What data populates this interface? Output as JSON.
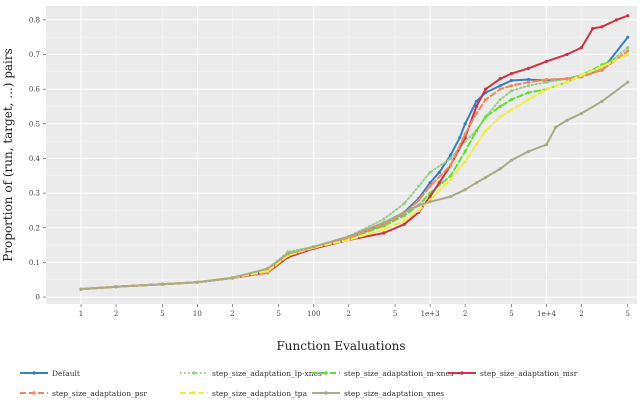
{
  "chart_data": {
    "type": "line",
    "title": "",
    "xlabel": "Function Evaluations",
    "ylabel": "Proportion of (run, target, ...) pairs",
    "x_scale": "log",
    "xlim": [
      0.5,
      60000
    ],
    "ylim": [
      -0.02,
      0.84
    ],
    "grid": true,
    "legend_position": "bottom",
    "x_ticks": [
      {
        "value": 1,
        "label": "1",
        "major": true
      },
      {
        "value": 2,
        "label": "2",
        "major": false
      },
      {
        "value": 5,
        "label": "5",
        "major": false
      },
      {
        "value": 10,
        "label": "10",
        "major": true
      },
      {
        "value": 20,
        "label": "2",
        "major": false
      },
      {
        "value": 50,
        "label": "5",
        "major": false
      },
      {
        "value": 100,
        "label": "100",
        "major": true
      },
      {
        "value": 200,
        "label": "2",
        "major": false
      },
      {
        "value": 500,
        "label": "5",
        "major": false
      },
      {
        "value": 1000,
        "label": "1e+3",
        "major": true
      },
      {
        "value": 2000,
        "label": "2",
        "major": false
      },
      {
        "value": 5000,
        "label": "5",
        "major": false
      },
      {
        "value": 10000,
        "label": "1e+4",
        "major": true
      },
      {
        "value": 20000,
        "label": "2",
        "major": false
      },
      {
        "value": 50000,
        "label": "5",
        "major": false
      }
    ],
    "y_ticks": [
      0,
      0.1,
      0.2,
      0.3,
      0.4,
      0.5,
      0.6,
      0.7,
      0.8
    ],
    "series": [
      {
        "name": "Default",
        "color": "#3a7fc4",
        "dash": "solid",
        "x": [
          1,
          2,
          5,
          10,
          20,
          40,
          60,
          100,
          200,
          400,
          600,
          800,
          1000,
          1200,
          1500,
          1800,
          2000,
          2500,
          3000,
          4000,
          5000,
          7000,
          10000,
          15000,
          20000,
          30000,
          50000
        ],
        "y": [
          0.023,
          0.03,
          0.037,
          0.043,
          0.055,
          0.075,
          0.12,
          0.145,
          0.17,
          0.21,
          0.245,
          0.285,
          0.33,
          0.36,
          0.41,
          0.46,
          0.5,
          0.565,
          0.59,
          0.61,
          0.625,
          0.628,
          0.625,
          0.63,
          0.64,
          0.655,
          0.75
        ]
      },
      {
        "name": "step_size_adaptation_lp-xnes",
        "color": "#99cc88",
        "dash": "dotted",
        "x": [
          1,
          2,
          5,
          10,
          20,
          40,
          60,
          100,
          200,
          400,
          600,
          800,
          1000,
          1500,
          2000,
          2500,
          3000,
          4000,
          5000,
          7000,
          10000,
          15000,
          20000,
          30000,
          50000
        ],
        "y": [
          0.023,
          0.03,
          0.037,
          0.043,
          0.056,
          0.08,
          0.13,
          0.145,
          0.175,
          0.225,
          0.27,
          0.32,
          0.36,
          0.4,
          0.45,
          0.48,
          0.52,
          0.57,
          0.595,
          0.61,
          0.62,
          0.63,
          0.64,
          0.66,
          0.72
        ]
      },
      {
        "name": "step_size_adaptation_m-xnes",
        "color": "#66dd33",
        "dash": "dashed",
        "x": [
          1,
          2,
          5,
          10,
          20,
          40,
          60,
          100,
          200,
          400,
          600,
          800,
          1000,
          1500,
          2000,
          2500,
          3000,
          4000,
          5000,
          7000,
          10000,
          15000,
          20000,
          30000,
          50000
        ],
        "y": [
          0.023,
          0.03,
          0.037,
          0.043,
          0.056,
          0.078,
          0.125,
          0.145,
          0.17,
          0.205,
          0.235,
          0.265,
          0.3,
          0.35,
          0.42,
          0.48,
          0.52,
          0.55,
          0.57,
          0.59,
          0.6,
          0.62,
          0.64,
          0.67,
          0.7
        ]
      },
      {
        "name": "step_size_adaptation_msr",
        "color": "#cc3344",
        "dash": "solid",
        "x": [
          1,
          2,
          5,
          10,
          20,
          40,
          60,
          100,
          200,
          400,
          600,
          800,
          1000,
          1200,
          1500,
          2000,
          2500,
          3000,
          4000,
          5000,
          7000,
          10000,
          15000,
          20000,
          25000,
          30000,
          40000,
          50000
        ],
        "y": [
          0.023,
          0.03,
          0.037,
          0.043,
          0.055,
          0.07,
          0.115,
          0.14,
          0.165,
          0.185,
          0.21,
          0.245,
          0.29,
          0.33,
          0.38,
          0.46,
          0.55,
          0.6,
          0.63,
          0.645,
          0.66,
          0.68,
          0.7,
          0.72,
          0.775,
          0.78,
          0.8,
          0.812
        ]
      },
      {
        "name": "step_size_adaptation_psr",
        "color": "#f08860",
        "dash": "dashed",
        "x": [
          1,
          2,
          5,
          10,
          20,
          40,
          60,
          100,
          200,
          400,
          600,
          800,
          1000,
          1500,
          2000,
          2500,
          3000,
          4000,
          5000,
          7000,
          10000,
          15000,
          20000,
          30000,
          50000
        ],
        "y": [
          0.023,
          0.03,
          0.037,
          0.043,
          0.055,
          0.07,
          0.12,
          0.142,
          0.17,
          0.21,
          0.24,
          0.28,
          0.32,
          0.38,
          0.47,
          0.53,
          0.57,
          0.6,
          0.61,
          0.62,
          0.628,
          0.63,
          0.635,
          0.655,
          0.71
        ]
      },
      {
        "name": "step_size_adaptation_tpa",
        "color": "#eeee44",
        "dash": "dashed",
        "x": [
          1,
          2,
          5,
          10,
          20,
          40,
          60,
          100,
          200,
          400,
          600,
          800,
          1000,
          1500,
          2000,
          2500,
          3000,
          4000,
          5000,
          7000,
          10000,
          15000,
          20000,
          30000,
          50000
        ],
        "y": [
          0.023,
          0.03,
          0.037,
          0.043,
          0.056,
          0.075,
          0.12,
          0.143,
          0.165,
          0.195,
          0.22,
          0.25,
          0.28,
          0.34,
          0.39,
          0.44,
          0.48,
          0.52,
          0.54,
          0.57,
          0.6,
          0.62,
          0.64,
          0.665,
          0.7
        ]
      },
      {
        "name": "step_size_adaptation_xnes",
        "color": "#aaaa88",
        "dash": "solid",
        "x": [
          1,
          2,
          5,
          10,
          20,
          40,
          60,
          100,
          200,
          400,
          600,
          800,
          1000,
          1500,
          2000,
          2500,
          3000,
          4000,
          5000,
          7000,
          10000,
          12000,
          15000,
          20000,
          30000,
          50000
        ],
        "y": [
          0.023,
          0.03,
          0.037,
          0.043,
          0.056,
          0.082,
          0.125,
          0.145,
          0.175,
          0.215,
          0.245,
          0.265,
          0.275,
          0.29,
          0.31,
          0.33,
          0.345,
          0.37,
          0.395,
          0.42,
          0.44,
          0.49,
          0.51,
          0.53,
          0.565,
          0.62
        ]
      }
    ]
  }
}
